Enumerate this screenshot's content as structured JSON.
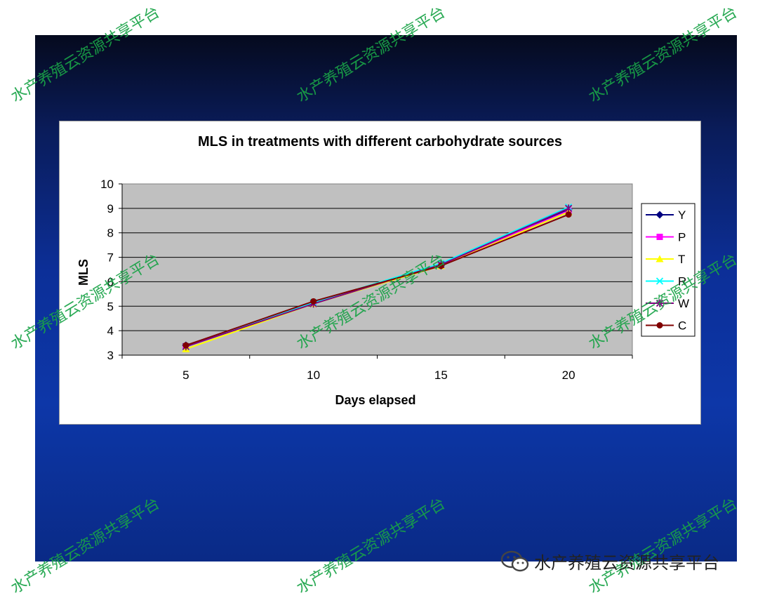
{
  "watermark_text": "水产养殖云资源共享平台",
  "footer": {
    "label": "水产养殖云资源共享平台",
    "icon": "wechat-icon"
  },
  "colors": {
    "background_top": "#050a1e",
    "background_bottom": "#0d37a8",
    "plot_area": "#c0c0c0",
    "watermark": "#19a347"
  },
  "chart_data": {
    "type": "line",
    "title": "MLS in treatments with different carbohydrate sources",
    "xlabel": "Days elapsed",
    "ylabel": "MLS",
    "categories": [
      "5",
      "10",
      "15",
      "20"
    ],
    "ylim": [
      3,
      10
    ],
    "yticks": [
      "3",
      "4",
      "5",
      "6",
      "7",
      "8",
      "9",
      "10"
    ],
    "grid": true,
    "legend_position": "right",
    "series": [
      {
        "name": "Y",
        "color": "#000080",
        "marker": "diamond",
        "values": [
          3.4,
          5.15,
          6.65,
          8.95
        ]
      },
      {
        "name": "P",
        "color": "#ff00ff",
        "marker": "square",
        "values": [
          3.35,
          5.15,
          6.7,
          8.9
        ]
      },
      {
        "name": "T",
        "color": "#ffff00",
        "marker": "triangle",
        "values": [
          3.25,
          5.1,
          6.65,
          8.85
        ]
      },
      {
        "name": "R",
        "color": "#00ffff",
        "marker": "x",
        "values": [
          3.35,
          5.15,
          6.75,
          9.05
        ]
      },
      {
        "name": "W",
        "color": "#800080",
        "marker": "star",
        "values": [
          3.35,
          5.1,
          6.7,
          9.0
        ]
      },
      {
        "name": "C",
        "color": "#800000",
        "marker": "circle",
        "values": [
          3.4,
          5.2,
          6.65,
          8.75
        ]
      }
    ]
  }
}
